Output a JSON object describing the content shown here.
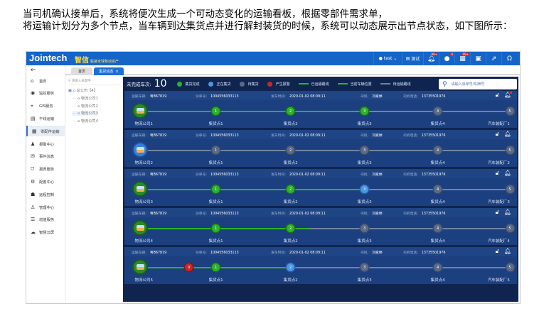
{
  "caption": [
    "当司机确认接单后，系统将便次生成一个可动态变化的运输看板，根据零部件需求单，",
    "将运输计划分为多个节点，当车辆到达集货点并进行解封装货的时候，系统可以动态展示出节点状态，如下图所示："
  ],
  "header": {
    "logo": "Jointech",
    "sublogo_mark": "智信",
    "sublogo": "联接全球移动资产",
    "user": "test",
    "test_label": "测试",
    "badges": {
      "alerts": "99+",
      "messages": "6",
      "tasks": "99+"
    }
  },
  "sidebar": {
    "items": [
      {
        "label": "首页",
        "icon": "home"
      },
      {
        "label": "监控服务",
        "icon": "monitor"
      },
      {
        "label": "GIS服务",
        "icon": "map"
      },
      {
        "label": "干线运输",
        "icon": "truck"
      },
      {
        "label": "零配件运输",
        "icon": "parts",
        "active": true
      },
      {
        "label": "报警中心",
        "icon": "alarm"
      },
      {
        "label": "事件消息",
        "icon": "mail"
      },
      {
        "label": "报表服务",
        "icon": "shield"
      },
      {
        "label": "配置中心",
        "icon": "gear"
      },
      {
        "label": "远程控制",
        "icon": "remote"
      },
      {
        "label": "管理中心",
        "icon": "user"
      },
      {
        "label": "增值服务",
        "icon": "service"
      },
      {
        "label": "智慧云屏",
        "icon": "cloud"
      }
    ]
  },
  "tabs": [
    {
      "label": "首页"
    },
    {
      "label": "集货动态",
      "active": true
    }
  ],
  "tree": {
    "search_placeholder": "请输入关键字",
    "root": "总公司【4】",
    "children": [
      "物流公司1",
      "物流公司2",
      "物流公司3",
      "物流公司4"
    ],
    "selected": "物流公司3"
  },
  "summary": {
    "label": "未完成车次:",
    "count": "10"
  },
  "legend": [
    {
      "label": "集货完成",
      "color": "#2fb12f",
      "kind": "dot"
    },
    {
      "label": "正在集货",
      "color": "#4a97e4",
      "kind": "dot"
    },
    {
      "label": "待集货",
      "color": "#5a6a88",
      "kind": "dot"
    },
    {
      "label": "产生报警",
      "color": "#c22a2a",
      "kind": "dot"
    },
    {
      "label": "已运输路线",
      "color": "#2bb52b",
      "kind": "line"
    },
    {
      "label": "当前车辆位置",
      "color": "#2bb52b",
      "kind": "line"
    },
    {
      "label": "待运输路线",
      "color": "#7384a3",
      "kind": "line"
    }
  ],
  "search_placeholder": "请输入派单号/车牌号",
  "field_labels": {
    "vehicle": "运输车辆:",
    "order": "派单号:",
    "time": "发车时间:",
    "driver": "司机:",
    "phone": "司机电话:"
  },
  "node_labels": [
    "集货点1",
    "集货点2",
    "集货点3",
    "集货点4"
  ],
  "rows": [
    {
      "vehicle": "粤B67819",
      "order": "1004556033113",
      "time": "2020-01-02 08:09:11",
      "driver": "刘家婷",
      "phone": "13735501976",
      "origin": "物流公司1",
      "origin_state": "g",
      "destination": "汽车装配厂1",
      "states": [
        "g",
        "g",
        "g",
        "w",
        "w"
      ],
      "progress": 0.6,
      "bell_alert": true
    },
    {
      "vehicle": "粤B67819",
      "order": "1004556033113",
      "time": "2020-01-02 08:09:11",
      "driver": "刘家婷",
      "phone": "13735501976",
      "origin": "物流公司2",
      "origin_state": "b",
      "destination": "汽车装配厂2",
      "states": [
        "w",
        "w",
        "w",
        "w",
        "w"
      ],
      "progress": 0
    },
    {
      "vehicle": "粤B67819",
      "order": "1004556033113",
      "time": "2020-01-02 08:09:11",
      "driver": "刘家婷",
      "phone": "13735501976",
      "origin": "物流公司3",
      "origin_state": "g",
      "destination": "汽车装配厂3",
      "states": [
        "g",
        "g",
        "b",
        "w",
        "w"
      ],
      "progress": 0.6
    },
    {
      "vehicle": "粤B67819",
      "order": "1004556033113",
      "time": "2020-01-02 08:09:11",
      "driver": "刘家婷",
      "phone": "13735501976",
      "origin": "物流公司4",
      "origin_state": "g",
      "destination": "汽车装配厂4",
      "states": [
        "g",
        "g",
        "w",
        "w",
        "w"
      ],
      "progress": 0.46
    },
    {
      "vehicle": "粤B67819",
      "order": "1004556033113",
      "time": "2020-01-02 08:09:11",
      "driver": "刘家婷",
      "phone": "13735501976",
      "origin": "物流公司5",
      "origin_state": "g",
      "destination": "汽车装配厂5",
      "states": [
        "g",
        "b",
        "w",
        "w",
        "w"
      ],
      "progress": 0.4,
      "alarm": {
        "label": "V",
        "between": [
          0,
          1
        ]
      }
    }
  ]
}
